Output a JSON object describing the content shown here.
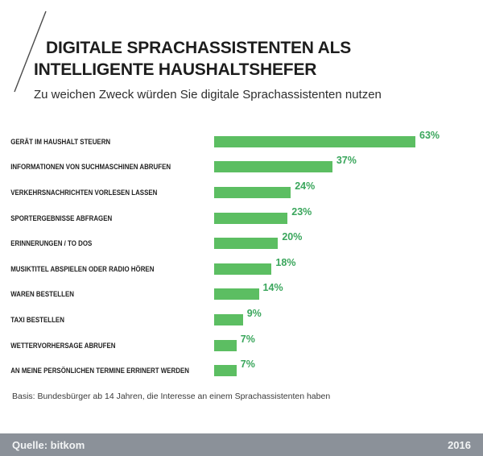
{
  "header": {
    "title_line1": "DIGITALE SPRACHASSISTENTEN ALS",
    "title_line2": "INTELLIGENTE HAUSHALTSHEFER",
    "subtitle": "Zu weichen Zweck würden Sie digitale Sprachassistenten nutzen"
  },
  "chart_data": {
    "type": "bar",
    "orientation": "horizontal",
    "title": "DIGITALE SPRACHASSISTENTEN ALS INTELLIGENTE HAUSHALTSHEFER",
    "subtitle": "Zu weichen Zweck würden Sie digitale Sprachassistenten nutzen",
    "categories": [
      "GERÄT IM HAUSHALT STEUERN",
      "INFORMATIONEN VON SUCHMASCHINEN ABRUFEN",
      "VERKEHRSNACHRICHTEN VORLESEN LASSEN",
      "SPORTERGEBNISSE ABFRAGEN",
      "ERINNERUNGEN / TO DOS",
      "MUSIKTITEL ABSPIELEN ODER RADIO HÖREN",
      "WAREN BESTELLEN",
      "TAXI BESTELLEN",
      "WETTERVORHERSAGE ABRUFEN",
      "AN MEINE PERSÖNLICHEN TERMINE ERRINERT WERDEN"
    ],
    "values": [
      63,
      37,
      24,
      23,
      20,
      18,
      14,
      9,
      7,
      7
    ],
    "value_suffix": "%",
    "xlabel": "",
    "ylabel": "",
    "xlim": [
      0,
      63
    ],
    "grid": false,
    "legend": false,
    "bar_color": "#5cbe62",
    "value_label_color": "#3aa65c"
  },
  "footnote": "Basis: Bundesbürger ab 14 Jahren, die Interesse an einem Sprachassistenten haben",
  "footer": {
    "source": "Quelle: bitkom",
    "year": "2016",
    "bg_color": "#8b9199"
  }
}
